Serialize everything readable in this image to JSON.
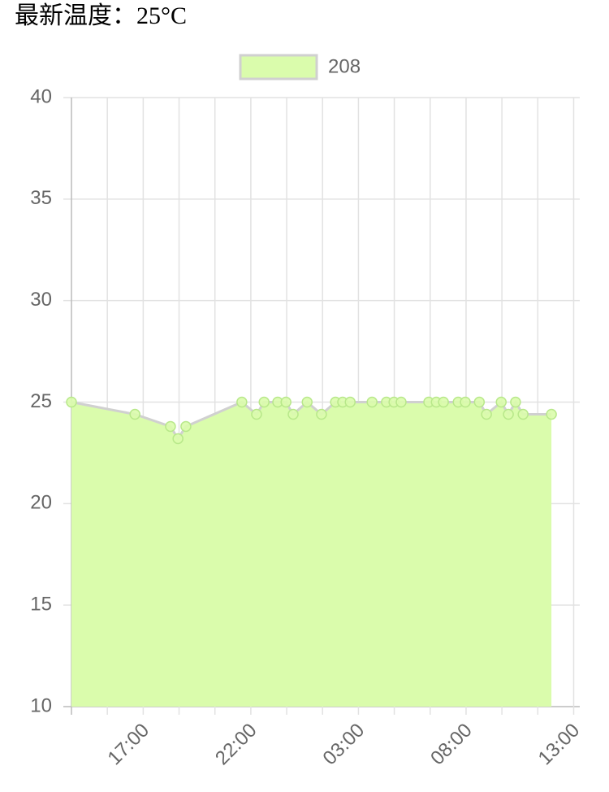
{
  "chart_data": {
    "type": "line",
    "title": "最新温度：25°C",
    "x": [
      "13:40",
      "16:37",
      "18:16",
      "18:37",
      "18:59",
      "21:35",
      "22:16",
      "22:37",
      "23:15",
      "23:38",
      "23:58",
      "00:37",
      "01:17",
      "01:56",
      "02:16",
      "02:37",
      "03:38",
      "04:18",
      "04:39",
      "04:59",
      "06:16",
      "06:37",
      "06:57",
      "07:38",
      "07:58",
      "08:37",
      "08:57",
      "09:38",
      "09:58",
      "10:18",
      "10:39",
      "11:58"
    ],
    "series": [
      {
        "name": "208",
        "color": "#dafcac",
        "border_color": "#d0d0d0",
        "values": [
          25,
          24.4,
          23.8,
          23.2,
          23.8,
          25,
          24.4,
          25,
          25,
          25,
          24.4,
          25,
          24.4,
          25,
          25,
          25,
          25,
          25,
          25,
          25,
          25,
          25,
          25,
          25,
          25,
          25,
          24.4,
          25,
          24.4,
          25,
          24.4,
          24.4
        ]
      }
    ],
    "xlim": [
      "13:40",
      "13:17"
    ],
    "xticks": [
      {
        "value": "13:40",
        "label": null
      },
      {
        "value": "15:20",
        "label": null
      },
      "17:00",
      {
        "value": "18:40",
        "label": null
      },
      {
        "value": "20:20",
        "label": null
      },
      "22:00",
      {
        "value": "23:40",
        "label": null
      },
      {
        "value": "01:20",
        "label": null
      },
      "03:00",
      {
        "value": "04:40",
        "label": null
      },
      {
        "value": "06:20",
        "label": null
      },
      "08:00",
      {
        "value": "09:40",
        "label": null
      },
      {
        "value": "11:20",
        "label": null
      },
      "13:00"
    ],
    "ylim": [
      10,
      40
    ],
    "yticks": [
      10,
      15,
      20,
      25,
      30,
      35,
      40
    ],
    "grid": true,
    "legend": "top"
  }
}
